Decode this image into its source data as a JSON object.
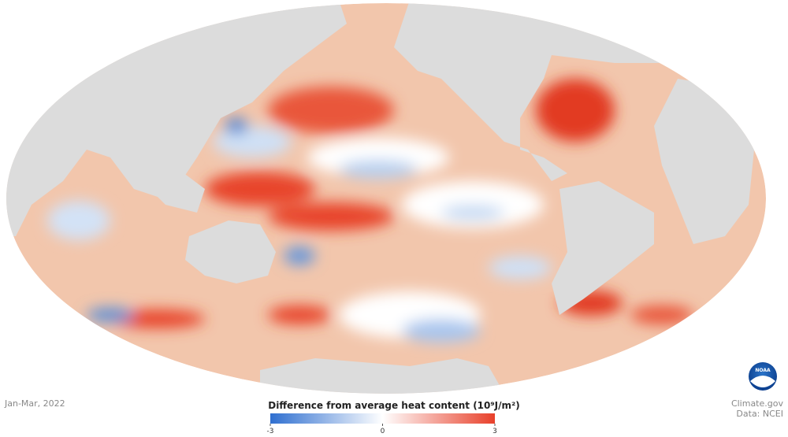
{
  "date": "Jan-Mar, 2022",
  "legend": {
    "title": "Difference from average heat content (10⁹J/m²)",
    "range": [
      -3,
      3
    ],
    "ticks": [
      -3,
      0,
      3
    ],
    "colors": [
      "#2f6fd0",
      "#ffffff",
      "#e8402a"
    ]
  },
  "credit": {
    "site": "Climate.gov",
    "source": "Data: NCEI",
    "logo": "NOAA"
  }
}
